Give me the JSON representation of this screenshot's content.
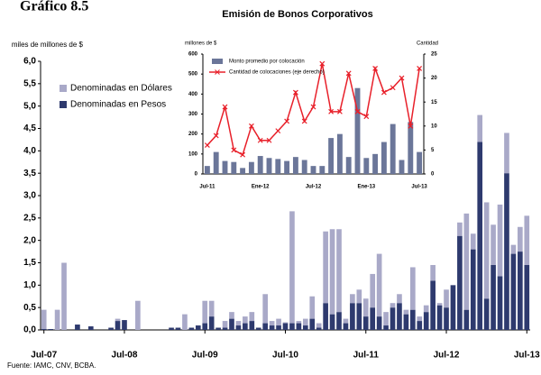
{
  "chart_data": [
    {
      "type": "stacked_bar",
      "title": "Gráfico 8.5",
      "ylabel": "miles de millones de $",
      "source": "Fuente: IAMC, CNV, BCBA.",
      "categories": [
        "Jul-07",
        null,
        null,
        null,
        null,
        null,
        null,
        null,
        null,
        null,
        null,
        null,
        "Jul-08",
        null,
        null,
        null,
        null,
        null,
        null,
        null,
        null,
        null,
        null,
        null,
        "Jul-09",
        null,
        null,
        null,
        null,
        null,
        null,
        null,
        null,
        null,
        null,
        null,
        "Jul-10",
        null,
        null,
        null,
        null,
        null,
        null,
        null,
        null,
        null,
        null,
        null,
        "Jul-11",
        null,
        null,
        null,
        null,
        null,
        null,
        null,
        null,
        null,
        null,
        null,
        "Jul-12",
        null,
        null,
        null,
        null,
        null,
        null,
        null,
        null,
        null,
        null,
        null,
        "Jul-13"
      ],
      "series": [
        {
          "name": "Denominadas en Pesos",
          "color": "#2e3a6e",
          "values": [
            0.02,
            0.02,
            0,
            0,
            0,
            0.12,
            0,
            0.08,
            0,
            0,
            0.05,
            0.2,
            0.22,
            0,
            0,
            0,
            0,
            0,
            0,
            0.05,
            0.05,
            0,
            0.05,
            0.1,
            0.15,
            0.3,
            0.05,
            0.05,
            0.25,
            0.1,
            0.15,
            0.2,
            0.05,
            0.15,
            0.1,
            0.1,
            0.15,
            0.15,
            0.15,
            0.1,
            0.25,
            0.05,
            0.6,
            0.35,
            0.4,
            0.15,
            0.6,
            0.6,
            0.3,
            0.5,
            0.3,
            0.1,
            0.5,
            0.6,
            0.35,
            0.45,
            0.2,
            0.4,
            1.1,
            0.55,
            0.5,
            1.0,
            2.1,
            0.45,
            1.8,
            4.2,
            0.7,
            1.45,
            1.2,
            3.5,
            1.7,
            1.75,
            1.45
          ]
        },
        {
          "name": "Denominadas  en Dólares",
          "color": "#a9a9c8",
          "values": [
            0.43,
            0,
            0.45,
            1.5,
            0,
            0,
            0,
            0,
            0,
            0,
            0,
            0.05,
            0,
            0,
            0.65,
            0,
            0,
            0,
            0,
            0,
            0,
            0.35,
            0,
            0,
            0.5,
            0.35,
            0,
            0.15,
            0.15,
            0.1,
            0.15,
            0.2,
            0,
            0.65,
            0.1,
            0.15,
            0.02,
            2.5,
            0.05,
            0.15,
            0.5,
            0.1,
            1.6,
            1.9,
            1.85,
            0.1,
            0.2,
            0.3,
            0.4,
            0.75,
            1.4,
            0.3,
            0.1,
            0.2,
            0.1,
            0.95,
            0.1,
            0.15,
            0.35,
            0.05,
            0.4,
            0,
            0.3,
            2.15,
            0.35,
            0.6,
            2.15,
            0.9,
            1.6,
            0.9,
            0.2,
            0.55,
            1.1
          ]
        }
      ],
      "ylim": [
        0,
        6
      ],
      "yticks": [
        {
          "value": 0,
          "label": "0,0"
        },
        {
          "value": 0.5,
          "label": "0,5"
        },
        {
          "value": 1,
          "label": "1,0"
        },
        {
          "value": 1.5,
          "label": "1,5"
        },
        {
          "value": 2,
          "label": "2,0"
        },
        {
          "value": 2.5,
          "label": "2,5"
        },
        {
          "value": 3,
          "label": "3,0"
        },
        {
          "value": 3.5,
          "label": "3,5"
        },
        {
          "value": 4,
          "label": "4,0"
        },
        {
          "value": 4.5,
          "label": "4,5"
        },
        {
          "value": 5,
          "label": "5,0"
        },
        {
          "value": 5.5,
          "label": "5,5"
        },
        {
          "value": 6,
          "label": "6,0"
        }
      ],
      "legend": "upper left"
    },
    {
      "type": "bar_line",
      "title": "Emisión de Bonos Corporativos",
      "ylabel": "millones de $",
      "y2label": "Cantidad",
      "categories": [
        "Jul-11",
        null,
        null,
        null,
        null,
        null,
        "Ene-12",
        null,
        null,
        null,
        null,
        null,
        "Jul-12",
        null,
        null,
        null,
        null,
        null,
        "Ene-13",
        null,
        null,
        null,
        null,
        null,
        "Jul-13"
      ],
      "series": [
        {
          "name": "Monto promedio por colocación",
          "color": "#6b7699",
          "values": [
            40,
            110,
            65,
            60,
            30,
            60,
            90,
            80,
            75,
            65,
            85,
            70,
            40,
            40,
            180,
            200,
            85,
            430,
            80,
            100,
            160,
            250,
            70,
            260,
            110
          ]
        },
        {
          "name": "Cantidad de colocaciones (eje derecho)",
          "color": "#e8202a",
          "axis": "y2",
          "values": [
            6,
            8,
            14,
            5,
            4,
            10,
            7,
            7,
            9,
            11,
            17,
            11,
            14,
            23,
            13,
            13,
            21,
            13,
            12,
            22,
            17,
            18,
            20,
            10,
            22
          ]
        }
      ],
      "ylim": [
        0,
        600
      ],
      "yticks": [
        0,
        100,
        200,
        300,
        400,
        500,
        600
      ],
      "y2lim": [
        0,
        25
      ],
      "y2ticks": [
        0,
        5,
        10,
        15,
        20,
        25
      ]
    }
  ]
}
